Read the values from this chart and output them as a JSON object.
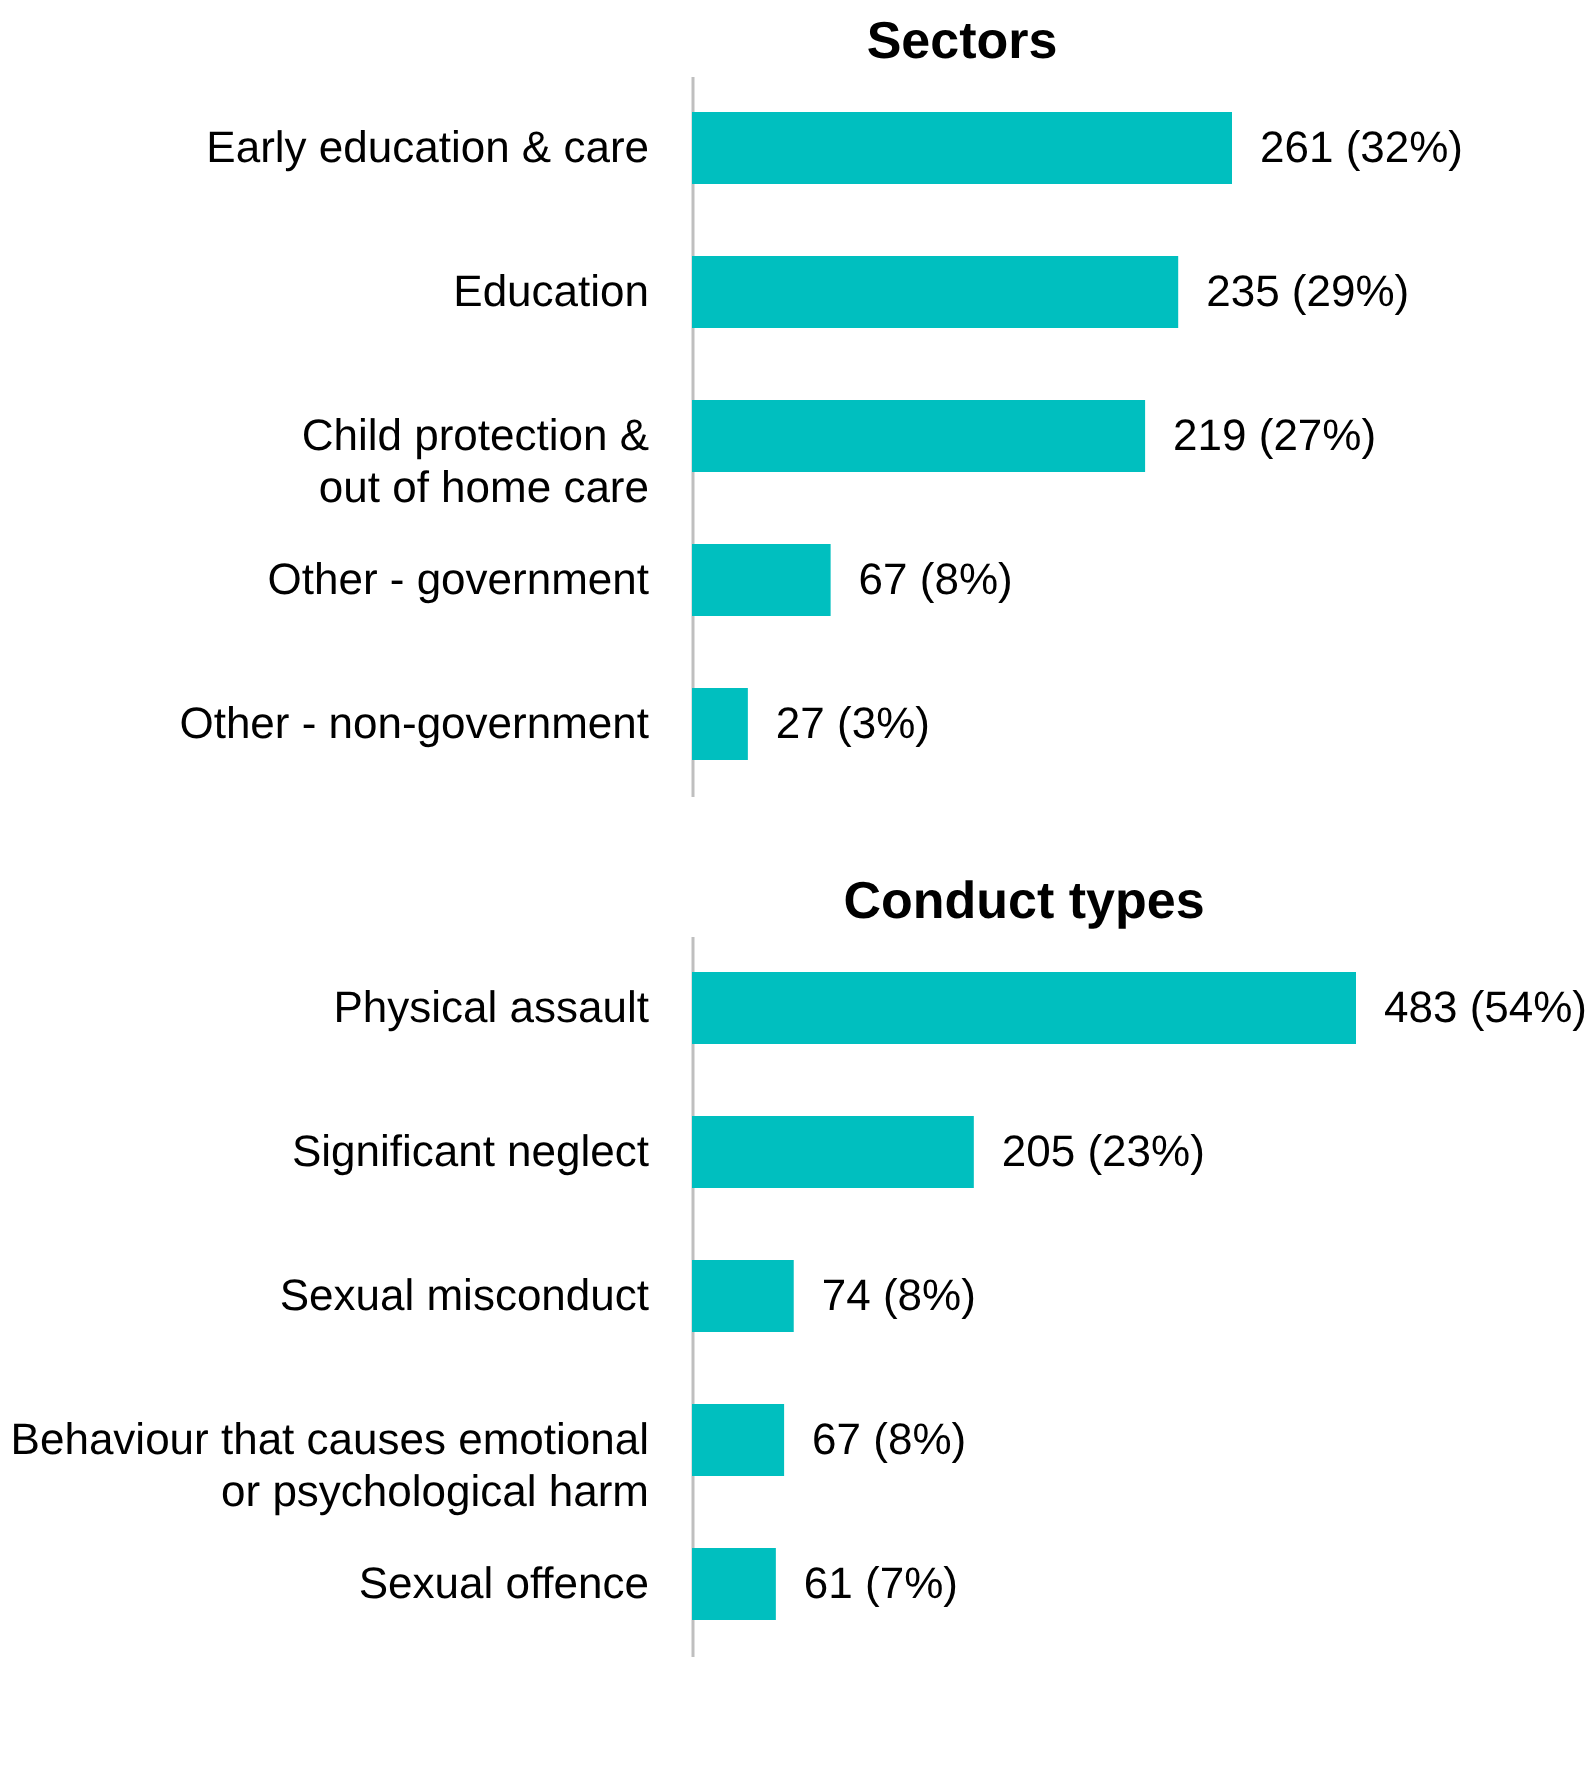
{
  "chart_data": [
    {
      "type": "bar",
      "orientation": "horizontal",
      "title": "Sectors",
      "categories": [
        "Early education & care",
        "Education",
        "Child protection &\nout of home care",
        "Other - government",
        "Other - non-government"
      ],
      "values": [
        261,
        235,
        219,
        67,
        27
      ],
      "color": "#00bfbf",
      "value_labels": [
        "261 (32%)",
        "235 (29%)",
        "219 (27%)",
        "67 (8%)",
        "27 (3%)"
      ]
    },
    {
      "type": "bar",
      "orientation": "horizontal",
      "title": "Conduct types",
      "categories": [
        "Physical assault",
        "Significant neglect",
        "Sexual misconduct",
        "Behaviour that causes emotional\nor psychological harm",
        "Sexual offence"
      ],
      "values": [
        483,
        205,
        74,
        67,
        61
      ],
      "color": "#00bfbf",
      "value_labels": [
        "483 (54%)",
        "205 (23%)",
        "74 (8%)",
        "67 (8%)",
        "61 (7%)"
      ]
    }
  ]
}
